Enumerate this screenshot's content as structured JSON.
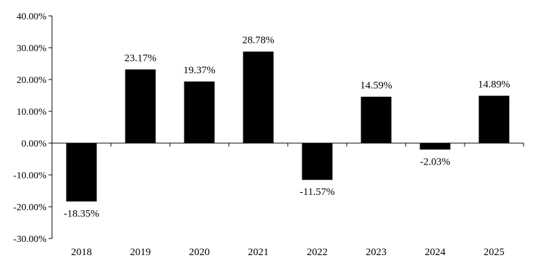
{
  "chart_data": {
    "type": "bar",
    "title": "",
    "xlabel": "",
    "ylabel": "",
    "categories": [
      "2018",
      "2019",
      "2020",
      "2021",
      "2022",
      "2023",
      "2024",
      "2025"
    ],
    "values": [
      -18.35,
      23.17,
      19.37,
      28.78,
      -11.57,
      14.59,
      -2.03,
      14.89
    ],
    "data_labels": [
      "-18.35%",
      "23.17%",
      "19.37%",
      "28.78%",
      "-11.57%",
      "14.59%",
      "-2.03%",
      "14.89%"
    ],
    "ylim": [
      -30,
      40
    ],
    "yticks": [
      40,
      30,
      20,
      10,
      0,
      -10,
      -20,
      -30
    ],
    "ytick_labels": [
      "40.00%",
      "30.00%",
      "20.00%",
      "10.00%",
      "0.00%",
      "-10.00%",
      "-20.00%",
      "-30.00%"
    ],
    "bar_color": "#000000",
    "grid": false,
    "legend": "none"
  }
}
